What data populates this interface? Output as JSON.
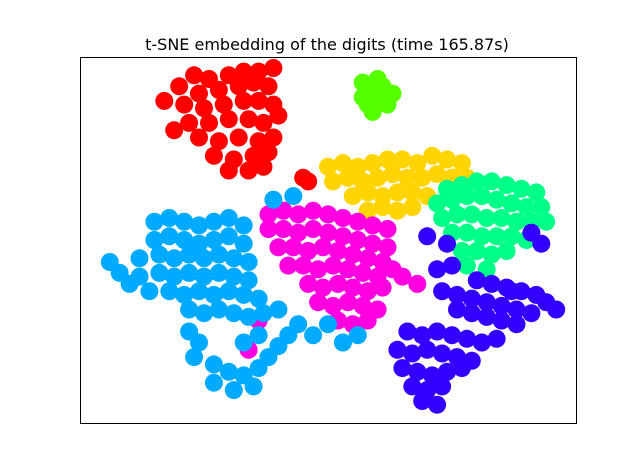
{
  "chart_data": {
    "type": "scatter",
    "title": "t-SNE embedding of the digits (time 165.87s)",
    "xlabel": "",
    "ylabel": "",
    "xlim": [
      0,
      100
    ],
    "ylim": [
      0,
      100
    ],
    "xticks": [],
    "yticks": [],
    "grid": false,
    "legend": "none",
    "series": [
      {
        "color": "#ff0000",
        "points": [
          [
            23,
            95
          ],
          [
            26,
            94
          ],
          [
            30,
            95
          ],
          [
            33,
            96
          ],
          [
            36,
            96
          ],
          [
            39,
            97
          ],
          [
            20,
            92
          ],
          [
            24,
            90
          ],
          [
            28,
            91
          ],
          [
            32,
            92
          ],
          [
            35,
            93
          ],
          [
            38,
            92
          ],
          [
            21,
            87
          ],
          [
            25,
            86
          ],
          [
            29,
            87
          ],
          [
            33,
            88
          ],
          [
            36,
            88
          ],
          [
            39,
            87
          ],
          [
            22,
            82
          ],
          [
            26,
            82
          ],
          [
            30,
            83
          ],
          [
            34,
            83
          ],
          [
            37,
            82
          ],
          [
            40,
            84
          ],
          [
            24,
            78
          ],
          [
            28,
            77
          ],
          [
            32,
            78
          ],
          [
            36,
            77
          ],
          [
            39,
            78
          ],
          [
            27,
            73
          ],
          [
            31,
            72
          ],
          [
            35,
            73
          ],
          [
            38,
            74
          ],
          [
            30,
            69
          ],
          [
            34,
            69
          ],
          [
            37,
            70
          ],
          [
            19,
            80
          ],
          [
            17,
            88
          ],
          [
            45,
            67
          ],
          [
            46,
            66
          ]
        ]
      },
      {
        "color": "#55ff00",
        "points": [
          [
            57,
            93
          ],
          [
            58,
            91
          ],
          [
            59,
            89
          ],
          [
            60,
            91
          ],
          [
            61,
            89
          ],
          [
            62,
            87
          ],
          [
            58,
            87
          ],
          [
            57,
            89
          ],
          [
            61,
            92
          ],
          [
            60,
            94
          ],
          [
            63,
            90
          ],
          [
            59,
            85
          ]
        ]
      },
      {
        "color": "#ffd400",
        "points": [
          [
            50,
            70
          ],
          [
            53,
            71
          ],
          [
            56,
            70
          ],
          [
            59,
            71
          ],
          [
            62,
            72
          ],
          [
            65,
            72
          ],
          [
            68,
            71
          ],
          [
            71,
            73
          ],
          [
            74,
            72
          ],
          [
            77,
            71
          ],
          [
            51,
            66
          ],
          [
            54,
            67
          ],
          [
            57,
            66
          ],
          [
            60,
            67
          ],
          [
            63,
            68
          ],
          [
            66,
            67
          ],
          [
            69,
            67
          ],
          [
            72,
            68
          ],
          [
            75,
            67
          ],
          [
            55,
            62
          ],
          [
            58,
            63
          ],
          [
            61,
            62
          ],
          [
            64,
            63
          ],
          [
            67,
            63
          ],
          [
            70,
            62
          ],
          [
            58,
            58
          ],
          [
            61,
            59
          ],
          [
            64,
            58
          ],
          [
            67,
            59
          ],
          [
            75,
            64
          ],
          [
            78,
            67
          ]
        ]
      },
      {
        "color": "#00ff88",
        "points": [
          [
            74,
            64
          ],
          [
            77,
            65
          ],
          [
            80,
            66
          ],
          [
            83,
            66
          ],
          [
            86,
            65
          ],
          [
            89,
            64
          ],
          [
            92,
            63
          ],
          [
            72,
            60
          ],
          [
            75,
            61
          ],
          [
            78,
            62
          ],
          [
            81,
            62
          ],
          [
            84,
            61
          ],
          [
            87,
            60
          ],
          [
            90,
            59
          ],
          [
            93,
            59
          ],
          [
            73,
            56
          ],
          [
            76,
            57
          ],
          [
            79,
            57
          ],
          [
            82,
            56
          ],
          [
            85,
            56
          ],
          [
            88,
            55
          ],
          [
            91,
            55
          ],
          [
            94,
            55
          ],
          [
            75,
            52
          ],
          [
            78,
            52
          ],
          [
            81,
            51
          ],
          [
            84,
            51
          ],
          [
            87,
            51
          ],
          [
            90,
            50
          ],
          [
            77,
            47
          ],
          [
            80,
            47
          ],
          [
            83,
            46
          ],
          [
            86,
            47
          ],
          [
            78,
            43
          ],
          [
            82,
            42
          ]
        ]
      },
      {
        "color": "#ff00e0",
        "points": [
          [
            38,
            57
          ],
          [
            41,
            58
          ],
          [
            44,
            57
          ],
          [
            47,
            58
          ],
          [
            50,
            57
          ],
          [
            53,
            56
          ],
          [
            56,
            55
          ],
          [
            59,
            54
          ],
          [
            62,
            53
          ],
          [
            38,
            53
          ],
          [
            41,
            53
          ],
          [
            44,
            52
          ],
          [
            47,
            53
          ],
          [
            50,
            52
          ],
          [
            53,
            51
          ],
          [
            56,
            50
          ],
          [
            59,
            49
          ],
          [
            62,
            48
          ],
          [
            40,
            48
          ],
          [
            43,
            48
          ],
          [
            46,
            47
          ],
          [
            49,
            48
          ],
          [
            52,
            47
          ],
          [
            55,
            46
          ],
          [
            58,
            45
          ],
          [
            61,
            44
          ],
          [
            42,
            43
          ],
          [
            45,
            43
          ],
          [
            48,
            42
          ],
          [
            51,
            43
          ],
          [
            54,
            42
          ],
          [
            57,
            41
          ],
          [
            60,
            40
          ],
          [
            63,
            42
          ],
          [
            46,
            38
          ],
          [
            49,
            37
          ],
          [
            52,
            38
          ],
          [
            55,
            37
          ],
          [
            58,
            36
          ],
          [
            61,
            37
          ],
          [
            48,
            33
          ],
          [
            51,
            32
          ],
          [
            54,
            33
          ],
          [
            57,
            32
          ],
          [
            60,
            31
          ],
          [
            52,
            28
          ],
          [
            55,
            27
          ],
          [
            58,
            28
          ],
          [
            65,
            40
          ],
          [
            68,
            38
          ],
          [
            36,
            28
          ],
          [
            34,
            20
          ]
        ]
      },
      {
        "color": "#00aaff",
        "points": [
          [
            15,
            55
          ],
          [
            18,
            56
          ],
          [
            21,
            55
          ],
          [
            24,
            54
          ],
          [
            27,
            55
          ],
          [
            30,
            56
          ],
          [
            33,
            54
          ],
          [
            6,
            44
          ],
          [
            8,
            41
          ],
          [
            10,
            38
          ],
          [
            12,
            45
          ],
          [
            12,
            40
          ],
          [
            14,
            36
          ],
          [
            15,
            50
          ],
          [
            18,
            51
          ],
          [
            21,
            50
          ],
          [
            24,
            49
          ],
          [
            27,
            50
          ],
          [
            30,
            51
          ],
          [
            33,
            49
          ],
          [
            16,
            46
          ],
          [
            19,
            45
          ],
          [
            22,
            46
          ],
          [
            25,
            45
          ],
          [
            28,
            46
          ],
          [
            31,
            45
          ],
          [
            34,
            44
          ],
          [
            16,
            41
          ],
          [
            19,
            40
          ],
          [
            22,
            41
          ],
          [
            25,
            40
          ],
          [
            28,
            41
          ],
          [
            31,
            40
          ],
          [
            34,
            39
          ],
          [
            18,
            36
          ],
          [
            21,
            35
          ],
          [
            24,
            36
          ],
          [
            27,
            35
          ],
          [
            30,
            36
          ],
          [
            33,
            35
          ],
          [
            36,
            34
          ],
          [
            22,
            31
          ],
          [
            25,
            30
          ],
          [
            28,
            31
          ],
          [
            31,
            30
          ],
          [
            34,
            29
          ],
          [
            37,
            30
          ],
          [
            40,
            31
          ],
          [
            22,
            25
          ],
          [
            24,
            22
          ],
          [
            23,
            18
          ],
          [
            27,
            16
          ],
          [
            30,
            14
          ],
          [
            33,
            13
          ],
          [
            36,
            15
          ],
          [
            38,
            18
          ],
          [
            40,
            21
          ],
          [
            42,
            24
          ],
          [
            35,
            10
          ],
          [
            31,
            9
          ],
          [
            27,
            11
          ],
          [
            33,
            22
          ],
          [
            36,
            24
          ],
          [
            44,
            27
          ],
          [
            47,
            24
          ],
          [
            50,
            27
          ],
          [
            53,
            22
          ],
          [
            56,
            24
          ],
          [
            39,
            61
          ],
          [
            43,
            62
          ]
        ]
      },
      {
        "color": "#3300ff",
        "points": [
          [
            72,
            42
          ],
          [
            75,
            43
          ],
          [
            80,
            39
          ],
          [
            83,
            38
          ],
          [
            86,
            37
          ],
          [
            89,
            36
          ],
          [
            92,
            35
          ],
          [
            94,
            33
          ],
          [
            96,
            31
          ],
          [
            73,
            36
          ],
          [
            76,
            35
          ],
          [
            79,
            34
          ],
          [
            82,
            33
          ],
          [
            85,
            32
          ],
          [
            88,
            31
          ],
          [
            91,
            30
          ],
          [
            76,
            31
          ],
          [
            79,
            30
          ],
          [
            82,
            29
          ],
          [
            85,
            28
          ],
          [
            88,
            27
          ],
          [
            66,
            25
          ],
          [
            69,
            24
          ],
          [
            72,
            25
          ],
          [
            75,
            24
          ],
          [
            78,
            23
          ],
          [
            81,
            22
          ],
          [
            84,
            23
          ],
          [
            64,
            20
          ],
          [
            67,
            19
          ],
          [
            70,
            20
          ],
          [
            73,
            19
          ],
          [
            76,
            18
          ],
          [
            79,
            17
          ],
          [
            65,
            15
          ],
          [
            68,
            14
          ],
          [
            71,
            13
          ],
          [
            74,
            14
          ],
          [
            77,
            15
          ],
          [
            67,
            10
          ],
          [
            70,
            9
          ],
          [
            73,
            10
          ],
          [
            69,
            6
          ],
          [
            72,
            5
          ],
          [
            91,
            52
          ],
          [
            93,
            49
          ],
          [
            70,
            51
          ],
          [
            74,
            49
          ],
          [
            87,
            36
          ]
        ]
      }
    ]
  }
}
